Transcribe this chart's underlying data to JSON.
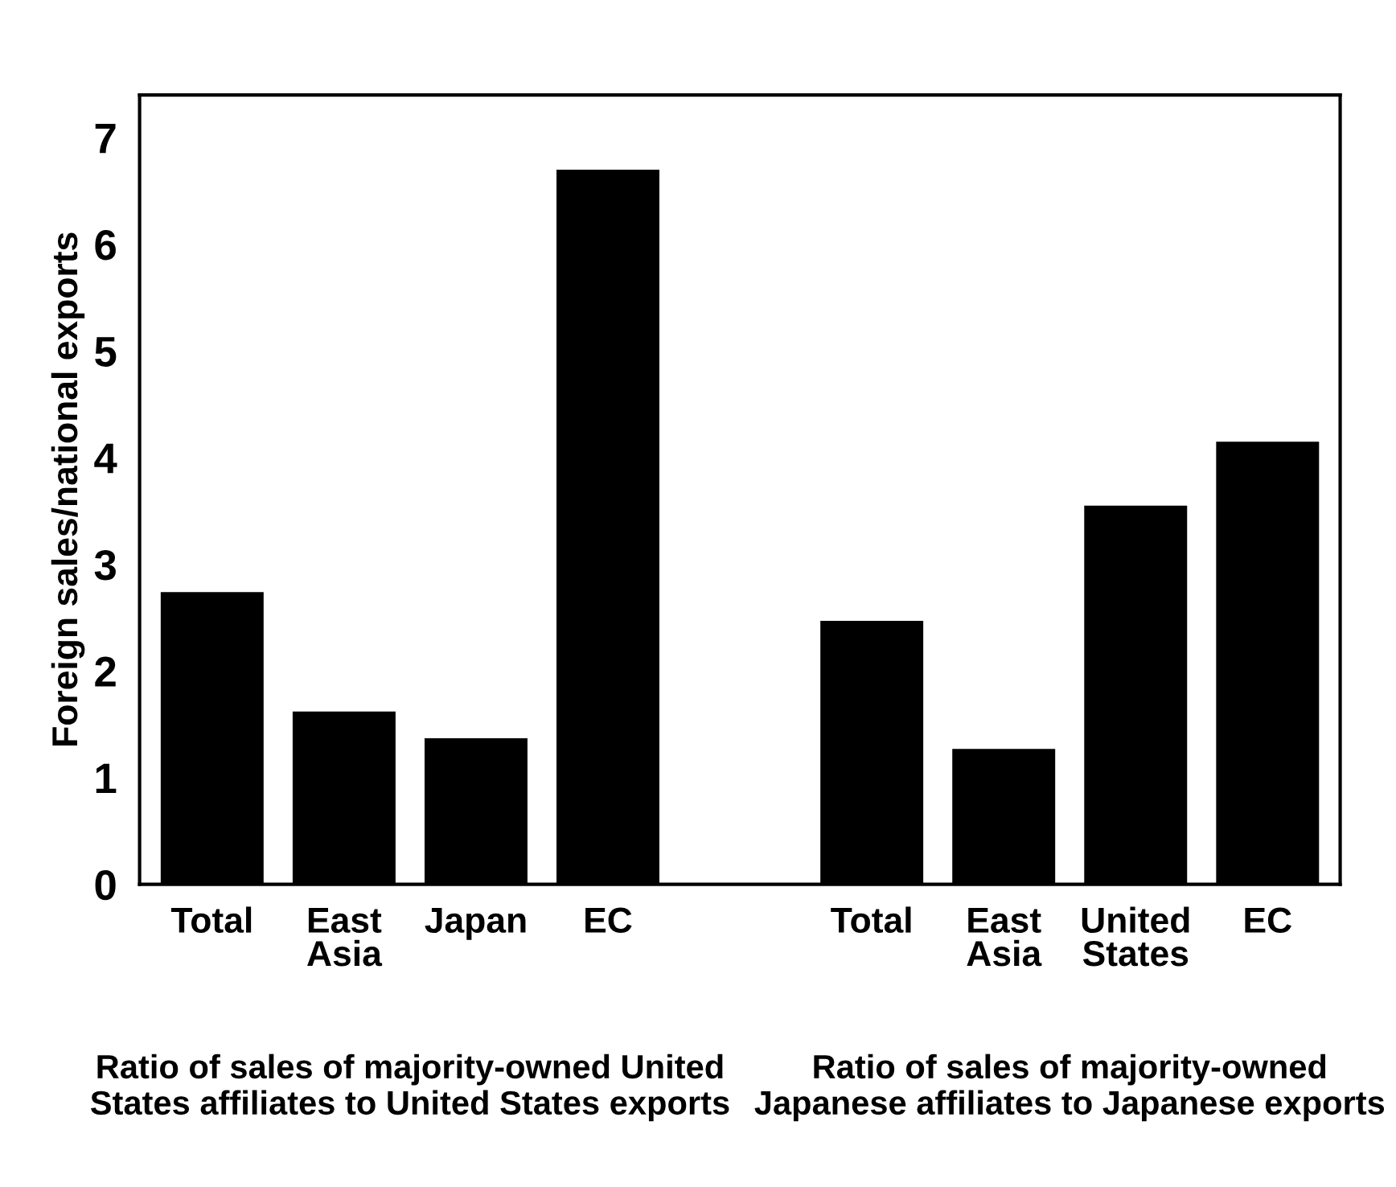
{
  "chart_data": {
    "type": "bar",
    "categories": [
      "Total",
      "East\nAsia",
      "Japan",
      "EC",
      null,
      "Total",
      "East\nAsia",
      "United\nStates",
      "EC"
    ],
    "values": [
      2.74,
      1.62,
      1.37,
      6.7,
      null,
      2.47,
      1.27,
      3.55,
      4.15
    ],
    "color": "#000000",
    "ylabel": "Foreign sales/national exports",
    "ylim": [
      0,
      7.4
    ],
    "yticks": [
      0,
      1,
      2,
      3,
      4,
      5,
      6,
      7
    ],
    "grid": false,
    "annotations": [
      "Ratio of sales of majority-owned United States affiliates to United States exports",
      "Ratio of sales of majority-owned Japanese affiliates to Japanese exports"
    ]
  }
}
